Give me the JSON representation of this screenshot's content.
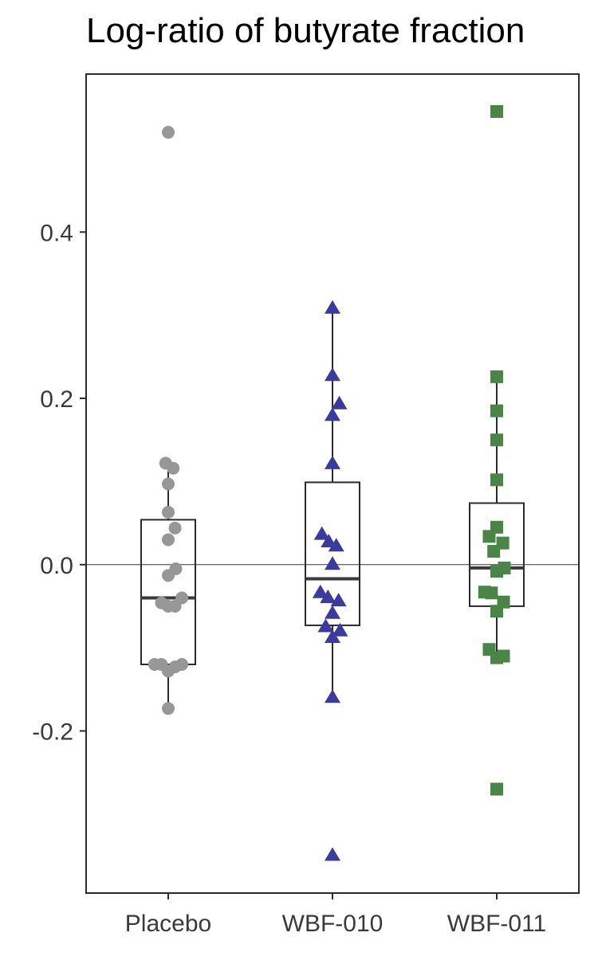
{
  "chart_data": {
    "type": "box",
    "title": "Log-ratio of butyrate fraction",
    "xlabel": "",
    "ylabel": "",
    "categories": [
      "Placebo",
      "WBF-010",
      "WBF-011"
    ],
    "ylim": [
      -0.395,
      0.59
    ],
    "yticks": [
      0.4,
      0.2,
      0.0,
      -0.2
    ],
    "ytick_labels": [
      "0.4",
      "0.2",
      "0.0",
      "-0.2"
    ],
    "reference_line_y": 0.0,
    "grid": false,
    "legend": "none",
    "series": [
      {
        "category": "Placebo",
        "marker": "circle",
        "color": "#979797",
        "box": {
          "q1": -0.12,
          "median": -0.04,
          "q3": 0.054,
          "whisker_low": -0.173,
          "whisker_high": 0.12
        },
        "points": [
          {
            "x": 0.0,
            "y": 0.52
          },
          {
            "x": -0.17,
            "y": 0.122
          },
          {
            "x": 0.33,
            "y": 0.116
          },
          {
            "x": 0.0,
            "y": 0.097
          },
          {
            "x": 0.0,
            "y": 0.063
          },
          {
            "x": 0.45,
            "y": 0.044
          },
          {
            "x": 0.0,
            "y": 0.03
          },
          {
            "x": 0.5,
            "y": -0.005
          },
          {
            "x": 0.0,
            "y": -0.013
          },
          {
            "x": 0.9,
            "y": -0.04
          },
          {
            "x": -0.45,
            "y": -0.046
          },
          {
            "x": 0.0,
            "y": -0.05
          },
          {
            "x": 0.45,
            "y": -0.05
          },
          {
            "x": -0.9,
            "y": -0.12
          },
          {
            "x": -0.45,
            "y": -0.12
          },
          {
            "x": 0.9,
            "y": -0.12
          },
          {
            "x": 0.45,
            "y": -0.123
          },
          {
            "x": 0.0,
            "y": -0.128
          },
          {
            "x": 0.0,
            "y": -0.173
          }
        ]
      },
      {
        "category": "WBF-010",
        "marker": "triangle",
        "color": "#3b3b9b",
        "box": {
          "q1": -0.073,
          "median": -0.017,
          "q3": 0.099,
          "whisker_low": -0.16,
          "whisker_high": 0.308
        },
        "points": [
          {
            "x": 0.0,
            "y": 0.308
          },
          {
            "x": 0.0,
            "y": 0.227
          },
          {
            "x": 0.45,
            "y": 0.193
          },
          {
            "x": 0.0,
            "y": 0.179
          },
          {
            "x": 0.0,
            "y": 0.121
          },
          {
            "x": -0.7,
            "y": 0.036
          },
          {
            "x": -0.25,
            "y": 0.027
          },
          {
            "x": 0.25,
            "y": 0.022
          },
          {
            "x": 0.0,
            "y": 0.0
          },
          {
            "x": -0.8,
            "y": -0.034
          },
          {
            "x": -0.3,
            "y": -0.04
          },
          {
            "x": 0.4,
            "y": -0.044
          },
          {
            "x": 0.0,
            "y": -0.059
          },
          {
            "x": -0.45,
            "y": -0.075
          },
          {
            "x": 0.5,
            "y": -0.08
          },
          {
            "x": 0.0,
            "y": -0.088
          },
          {
            "x": 0.0,
            "y": -0.16
          },
          {
            "x": 0.0,
            "y": -0.35
          }
        ]
      },
      {
        "category": "WBF-011",
        "marker": "square",
        "color": "#4b8447",
        "box": {
          "q1": -0.05,
          "median": -0.004,
          "q3": 0.074,
          "whisker_low": -0.11,
          "whisker_high": 0.226
        },
        "points": [
          {
            "x": 0.0,
            "y": 0.545
          },
          {
            "x": 0.0,
            "y": 0.226
          },
          {
            "x": 0.0,
            "y": 0.185
          },
          {
            "x": 0.0,
            "y": 0.15
          },
          {
            "x": 0.0,
            "y": 0.102
          },
          {
            "x": -0.5,
            "y": 0.034
          },
          {
            "x": 0.0,
            "y": 0.045
          },
          {
            "x": 0.4,
            "y": 0.026
          },
          {
            "x": -0.2,
            "y": 0.016
          },
          {
            "x": 0.5,
            "y": -0.004
          },
          {
            "x": 0.0,
            "y": -0.008
          },
          {
            "x": -0.8,
            "y": -0.033
          },
          {
            "x": -0.35,
            "y": -0.034
          },
          {
            "x": 0.45,
            "y": -0.045
          },
          {
            "x": 0.0,
            "y": -0.056
          },
          {
            "x": -0.5,
            "y": -0.102
          },
          {
            "x": 0.45,
            "y": -0.11
          },
          {
            "x": 0.0,
            "y": -0.112
          },
          {
            "x": 0.0,
            "y": -0.27
          }
        ]
      }
    ]
  }
}
